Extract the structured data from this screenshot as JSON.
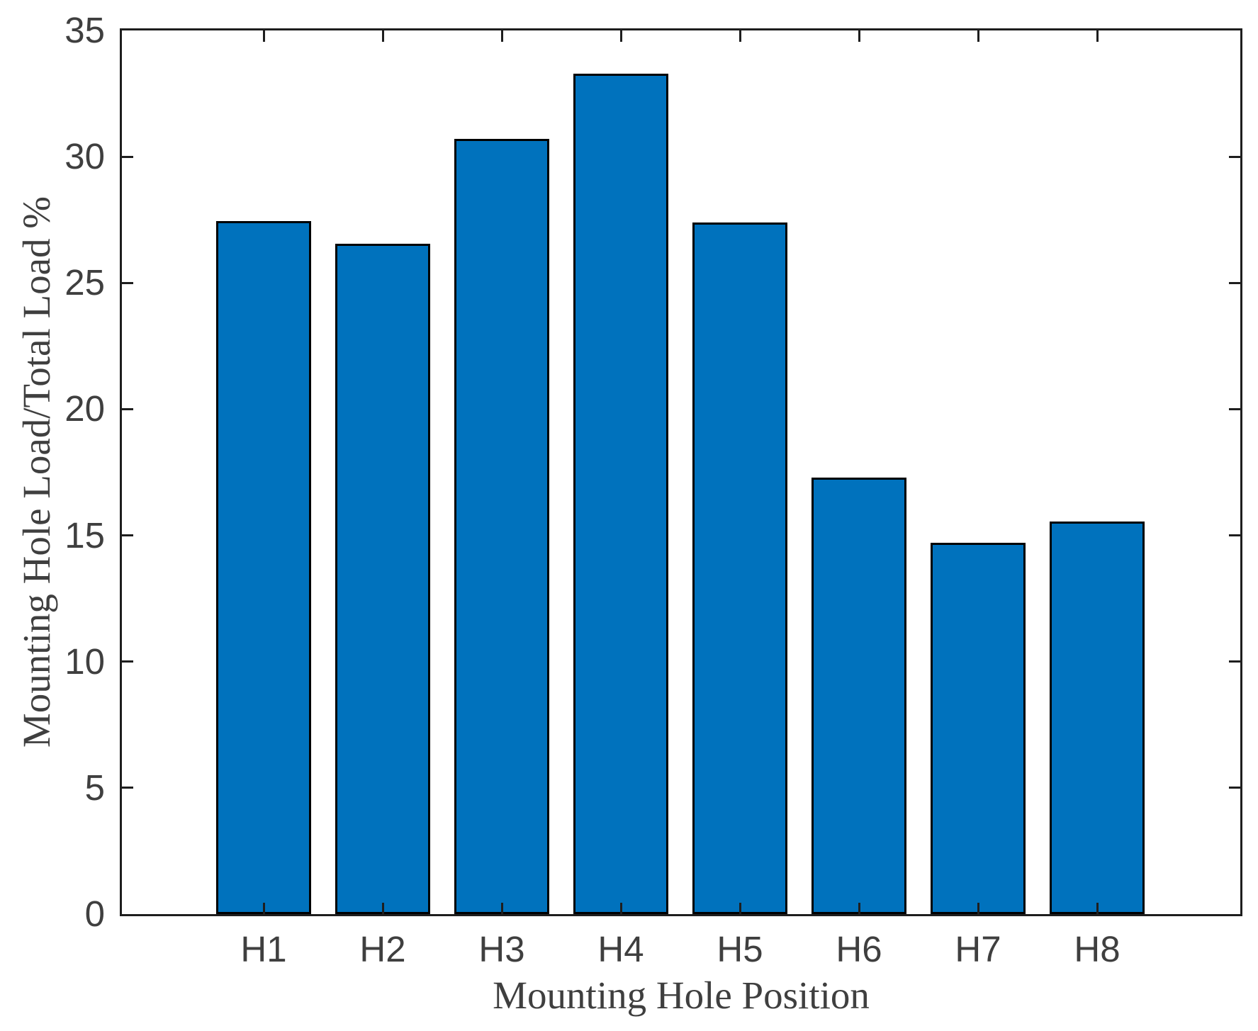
{
  "chart_data": {
    "type": "bar",
    "categories": [
      "H1",
      "H2",
      "H3",
      "H4",
      "H5",
      "H6",
      "H7",
      "H8"
    ],
    "values": [
      27.45,
      26.55,
      30.7,
      33.3,
      27.4,
      17.3,
      14.7,
      15.55
    ],
    "title": "",
    "xlabel": "Mounting Hole Position",
    "ylabel": "Mounting Hole Load/Total Load %",
    "ylim": [
      0,
      35
    ],
    "yticks": [
      0,
      5,
      10,
      15,
      20,
      25,
      30,
      35
    ],
    "grid": false,
    "legend": null,
    "bar_color": "#0072BD",
    "bar_edge_color": "#000000",
    "axis_color": "#1e1e1e",
    "tick_label_color": "#3f3f3f",
    "tick_direction": "in",
    "box": true
  }
}
